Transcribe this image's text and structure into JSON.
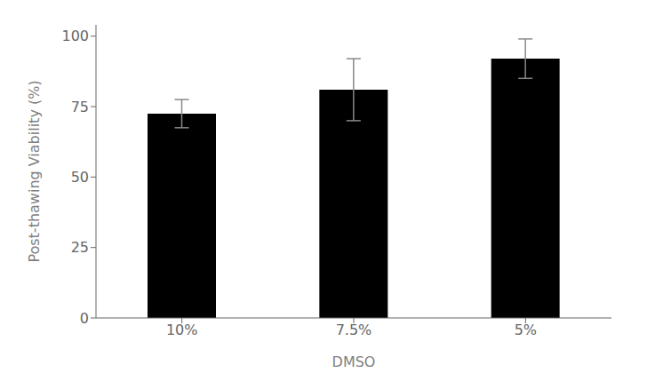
{
  "chart_data": {
    "type": "bar",
    "categories": [
      "10%",
      "7.5%",
      "5%"
    ],
    "values": [
      72.5,
      81.0,
      92.0
    ],
    "errors": [
      5.0,
      11.0,
      7.0
    ],
    "color": "#000000",
    "xlabel": "DMSO",
    "ylabel": "Post-thawing Viability (%)",
    "ylim": [
      0,
      104
    ],
    "yticks": [
      0,
      25,
      50,
      75,
      100
    ],
    "grid": false
  }
}
